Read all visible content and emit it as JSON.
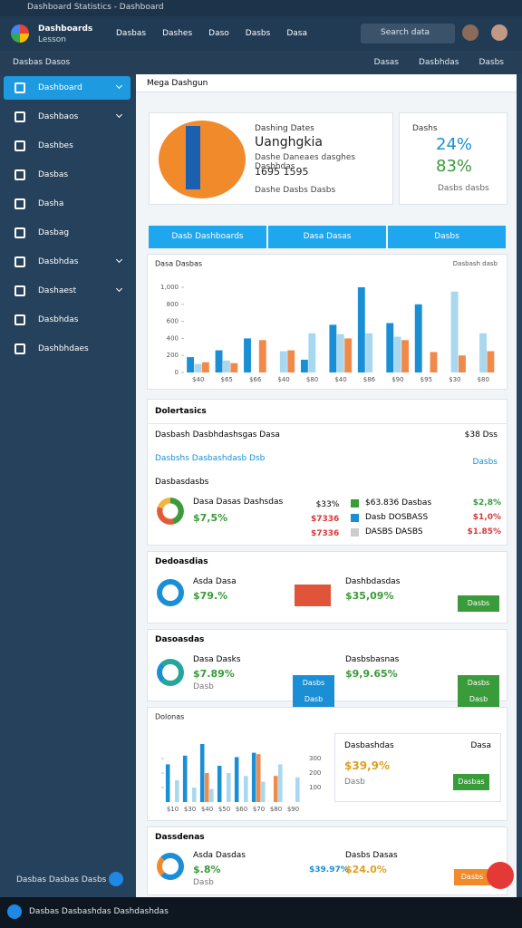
{
  "window": {
    "title": "Dashboard Statistics - Dashboard"
  },
  "header": {
    "brand": "Dashboards",
    "brand_sub": "Lesson",
    "nav": [
      "Dasbas",
      "Dashes",
      "Daso",
      "Dasbs",
      "Dasa"
    ],
    "search": "Search data"
  },
  "subbar": {
    "left": "Dasbas Dasos",
    "right": [
      "Dasas",
      "Dasbhdas",
      "Dasbs"
    ]
  },
  "sidebar": {
    "items": [
      "Dashboard",
      "Dashbaos",
      "Dashbes",
      "Dasbas",
      "Dasha",
      "Dasbag",
      "Dasbhdas",
      "Dashaest",
      "Dasbhdas",
      "Dashbhdaes"
    ],
    "footer": "Dasbas Dasbas Dasbs"
  },
  "panel": {
    "title": "Mega Dashgun"
  },
  "hero": {
    "kicker": "Dashing Dates",
    "title": "Uanghgkia",
    "desc": "Dashe Daneaes dasghes Dasbhdas",
    "numbers": "1695 1595",
    "meta": "Dashe Dasbs Dasbs"
  },
  "stats": {
    "title": "Dashs",
    "primary": "24%",
    "secondary": "83%",
    "meta": "Dasbs dasbs"
  },
  "tabs": [
    "Dasb Dashboards",
    "Dasa Dasas",
    "Dasbs"
  ],
  "chart_data": [
    {
      "type": "bar",
      "title": "Dasa Dasbas",
      "subtitle": "Dasbash dasb",
      "categories": [
        "$40",
        "$65",
        "$66",
        "$40",
        "$80",
        "$40",
        "$86",
        "$90",
        "$95",
        "$30",
        "$80"
      ],
      "series": [
        {
          "color": "#1a8fd6",
          "values": [
            180,
            260,
            400,
            0,
            150,
            560,
            1000,
            580,
            800,
            0,
            0
          ]
        },
        {
          "color": "#a8d8f0",
          "values": [
            100,
            140,
            0,
            250,
            460,
            450,
            460,
            420,
            0,
            950,
            460
          ]
        },
        {
          "color": "#f08a4b",
          "values": [
            120,
            110,
            380,
            260,
            0,
            400,
            0,
            380,
            240,
            200,
            250
          ]
        }
      ],
      "ylim": [
        0,
        1000
      ],
      "yticks": [
        0,
        200,
        400,
        600,
        800,
        {
          "value": 1000,
          "label": "1,000"
        }
      ]
    },
    {
      "type": "bar",
      "title": "Dolonas",
      "categories": [
        "$10",
        "$30",
        "$40",
        "$50",
        "$60",
        "$70",
        "$80",
        "$90"
      ],
      "series": [
        {
          "color": "#1a8fd6",
          "values": [
            260,
            320,
            400,
            250,
            310,
            340,
            0,
            0
          ]
        },
        {
          "color": "#f08a4b",
          "values": [
            0,
            0,
            200,
            0,
            0,
            330,
            180,
            0
          ]
        },
        {
          "color": "#a8d8f0",
          "values": [
            150,
            100,
            90,
            200,
            180,
            140,
            260,
            170
          ]
        }
      ],
      "ylim": [
        0,
        400
      ],
      "yticks": [
        100,
        200,
        300
      ]
    }
  ],
  "details": {
    "title": "Dolertasics",
    "row1": "Dasbash Dasbhdashsgas Dasa",
    "row1_value": "$38 Dss",
    "link": "Dasbshs Dasbashdasb Dsb",
    "link_right": "Dasbs",
    "sub": "Dasbasdasbs",
    "name": "Dasa Dasas Dashsdas",
    "value": "$7,5%",
    "mid": [
      "$33%",
      "$7336",
      "$7336"
    ],
    "list": [
      {
        "label": "$63.836 Dasbas",
        "value": "$2,8%"
      },
      {
        "label": "Dasb DOSBASS",
        "value": "$1,0%"
      },
      {
        "label": "DASBS DASBS",
        "value": "$1.85%"
      }
    ]
  },
  "section2": {
    "title": "Dedoasdias",
    "name": "Asda Dasa",
    "value": "$79.%",
    "right_name": "Dashbdasdas",
    "right_value": "$35,09%",
    "button": "Dasbs"
  },
  "section3": {
    "title": "Dasoasdas",
    "name": "Dasa Dasks",
    "value": "$7.89%",
    "note": "Dasb",
    "mid_button": "Dasbs Dasb",
    "right_name": "Dasbsbasnas",
    "right_value": "$9,9.65%",
    "button": "Dasbs Dasb"
  },
  "section4": {
    "card_title": "Dasbashdas",
    "card_right": "Dasa",
    "card_value": "$39,9%",
    "card_note": "Dasb",
    "button": "Dasbas"
  },
  "section5": {
    "title": "Dassdenas",
    "name": "Asda Dasdas",
    "value": "$.8%",
    "note": "Dasb",
    "mid_value": "$39.97%",
    "right_name": "Dasbs Dasas",
    "right_value": "$24.0%",
    "button": "Dasbs"
  },
  "taskbar": {
    "text": "Dasbas Dasbashdas Dashdashdas"
  }
}
